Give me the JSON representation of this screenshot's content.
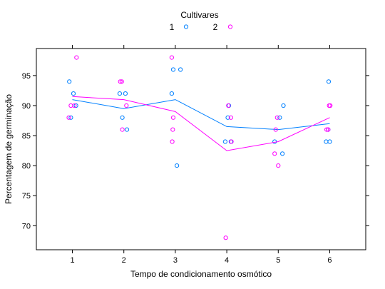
{
  "chart_data": {
    "type": "scatter",
    "title": "",
    "xlabel": "Tempo de condicionamento osmótico",
    "ylabel": "Percentagem de germinação",
    "xlim": [
      0.3,
      6.7
    ],
    "ylim": [
      66,
      99.5
    ],
    "xticks": [
      1,
      2,
      3,
      4,
      5,
      6
    ],
    "yticks": [
      70,
      75,
      80,
      85,
      90,
      95
    ],
    "grid": false,
    "legend": {
      "title": "Cultivares",
      "position": "top-center"
    },
    "series": [
      {
        "name": "1",
        "color": "#0080ff",
        "points": [
          [
            0.94,
            94
          ],
          [
            1.02,
            92
          ],
          [
            0.97,
            88
          ],
          [
            1.07,
            90
          ],
          [
            1.92,
            92
          ],
          [
            1.97,
            88
          ],
          [
            2.03,
            92
          ],
          [
            2.06,
            86
          ],
          [
            2.93,
            92
          ],
          [
            2.96,
            96
          ],
          [
            3.1,
            96
          ],
          [
            3.03,
            80
          ],
          [
            3.97,
            84
          ],
          [
            4.02,
            88
          ],
          [
            4.04,
            90
          ],
          [
            4.08,
            84
          ],
          [
            4.93,
            84
          ],
          [
            5.03,
            88
          ],
          [
            5.08,
            82
          ],
          [
            5.1,
            90
          ],
          [
            5.93,
            84
          ],
          [
            5.97,
            86
          ],
          [
            5.98,
            94
          ],
          [
            6.0,
            84
          ]
        ],
        "line_x": [
          1,
          2,
          3,
          4,
          5,
          6
        ],
        "line_y": [
          91,
          89.5,
          91,
          86.5,
          86,
          87
        ]
      },
      {
        "name": "2",
        "color": "#ff00ff",
        "points": [
          [
            0.93,
            88
          ],
          [
            0.97,
            90
          ],
          [
            1.04,
            90
          ],
          [
            1.08,
            98
          ],
          [
            1.93,
            94
          ],
          [
            1.96,
            94
          ],
          [
            1.97,
            86
          ],
          [
            2.05,
            90
          ],
          [
            2.93,
            98
          ],
          [
            2.94,
            84
          ],
          [
            2.95,
            86
          ],
          [
            2.96,
            88
          ],
          [
            3.98,
            68
          ],
          [
            4.03,
            90
          ],
          [
            4.08,
            88
          ],
          [
            4.09,
            84
          ],
          [
            4.93,
            82
          ],
          [
            4.95,
            86
          ],
          [
            4.98,
            88
          ],
          [
            5.0,
            80
          ],
          [
            5.94,
            86
          ],
          [
            5.97,
            86
          ],
          [
            5.99,
            90
          ],
          [
            6.01,
            90
          ]
        ],
        "line_x": [
          1,
          2,
          3,
          4,
          5,
          6
        ],
        "line_y": [
          91.5,
          91,
          89,
          82.5,
          84,
          88
        ]
      }
    ]
  }
}
